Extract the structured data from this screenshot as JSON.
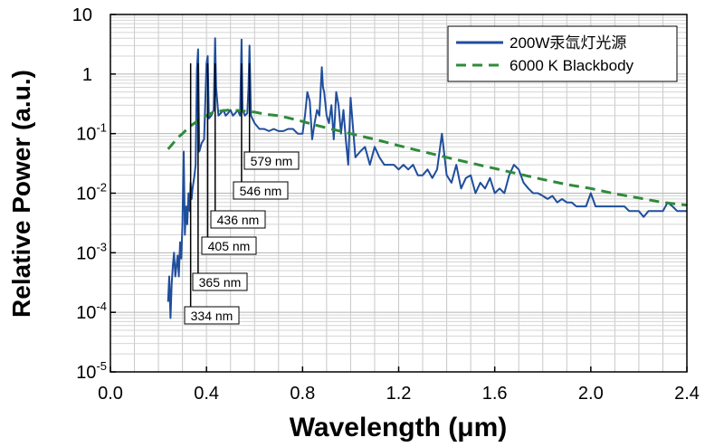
{
  "chart_data": {
    "type": "line",
    "title": "",
    "xlabel": "Wavelength (μm)",
    "ylabel": "Relative Power (a.u.)",
    "xlim": [
      0.0,
      2.4
    ],
    "ylim_log10": [
      -5,
      1
    ],
    "x_ticks": [
      "0.0",
      "0.4",
      "0.8",
      "1.2",
      "1.6",
      "2.0",
      "2.4"
    ],
    "y_ticks": [
      {
        "value": 10,
        "label": "10",
        "exp": ""
      },
      {
        "value": 1,
        "label": "1",
        "exp": ""
      },
      {
        "value": 0.1,
        "label": "10",
        "exp": "-1"
      },
      {
        "value": 0.01,
        "label": "10",
        "exp": "-2"
      },
      {
        "value": 0.001,
        "label": "10",
        "exp": "-3"
      },
      {
        "value": 0.0001,
        "label": "10",
        "exp": "-4"
      },
      {
        "value": 1e-05,
        "label": "10",
        "exp": "-5"
      }
    ],
    "grid": true,
    "legend_position": "top-right",
    "series": [
      {
        "name": "200W汞氙灯光源",
        "color": "#1f4e9c",
        "style": "solid",
        "x": [
          0.24,
          0.245,
          0.25,
          0.255,
          0.26,
          0.265,
          0.27,
          0.275,
          0.28,
          0.285,
          0.29,
          0.295,
          0.3,
          0.305,
          0.31,
          0.313,
          0.316,
          0.32,
          0.325,
          0.33,
          0.334,
          0.338,
          0.342,
          0.35,
          0.355,
          0.36,
          0.365,
          0.37,
          0.38,
          0.39,
          0.4,
          0.405,
          0.41,
          0.42,
          0.43,
          0.436,
          0.44,
          0.45,
          0.46,
          0.47,
          0.48,
          0.49,
          0.5,
          0.51,
          0.52,
          0.53,
          0.54,
          0.546,
          0.55,
          0.56,
          0.57,
          0.575,
          0.579,
          0.585,
          0.6,
          0.62,
          0.64,
          0.66,
          0.68,
          0.7,
          0.72,
          0.74,
          0.76,
          0.78,
          0.8,
          0.81,
          0.82,
          0.83,
          0.84,
          0.85,
          0.86,
          0.87,
          0.88,
          0.885,
          0.89,
          0.9,
          0.91,
          0.92,
          0.93,
          0.94,
          0.95,
          0.96,
          0.97,
          0.98,
          0.99,
          1.0,
          1.02,
          1.04,
          1.06,
          1.08,
          1.1,
          1.12,
          1.14,
          1.16,
          1.18,
          1.2,
          1.22,
          1.24,
          1.26,
          1.28,
          1.3,
          1.32,
          1.34,
          1.36,
          1.38,
          1.4,
          1.42,
          1.44,
          1.46,
          1.48,
          1.5,
          1.52,
          1.54,
          1.56,
          1.58,
          1.6,
          1.62,
          1.64,
          1.66,
          1.68,
          1.7,
          1.72,
          1.74,
          1.76,
          1.78,
          1.8,
          1.82,
          1.84,
          1.86,
          1.88,
          1.9,
          1.92,
          1.94,
          1.96,
          1.98,
          2.0,
          2.02,
          2.04,
          2.06,
          2.08,
          2.1,
          2.12,
          2.14,
          2.16,
          2.18,
          2.2,
          2.22,
          2.24,
          2.26,
          2.28,
          2.3,
          2.32,
          2.34,
          2.36,
          2.38,
          2.4
        ],
        "y": [
          0.00015,
          0.0004,
          8e-05,
          0.0003,
          0.0006,
          0.001,
          0.0004,
          0.0006,
          0.0009,
          0.0004,
          0.0015,
          0.0008,
          0.003,
          0.05,
          0.002,
          0.004,
          0.006,
          0.003,
          0.01,
          0.005,
          0.015,
          0.008,
          0.012,
          0.02,
          0.03,
          1.2,
          2.6,
          0.05,
          0.07,
          0.08,
          1.5,
          2.0,
          0.18,
          0.2,
          0.25,
          4.0,
          0.6,
          0.2,
          0.22,
          0.25,
          0.2,
          0.22,
          0.25,
          0.2,
          0.22,
          0.25,
          0.2,
          3.8,
          0.25,
          0.2,
          0.22,
          0.6,
          3.0,
          0.2,
          0.15,
          0.12,
          0.12,
          0.11,
          0.12,
          0.11,
          0.11,
          0.12,
          0.12,
          0.1,
          0.1,
          0.2,
          0.5,
          0.35,
          0.08,
          0.15,
          0.25,
          0.2,
          1.3,
          0.6,
          0.5,
          0.2,
          0.15,
          0.3,
          0.08,
          0.5,
          0.3,
          0.1,
          0.25,
          0.08,
          0.03,
          0.4,
          0.04,
          0.05,
          0.06,
          0.03,
          0.06,
          0.04,
          0.03,
          0.03,
          0.03,
          0.025,
          0.03,
          0.025,
          0.03,
          0.02,
          0.02,
          0.025,
          0.018,
          0.025,
          0.1,
          0.02,
          0.015,
          0.03,
          0.012,
          0.018,
          0.02,
          0.01,
          0.015,
          0.012,
          0.018,
          0.01,
          0.012,
          0.01,
          0.02,
          0.03,
          0.025,
          0.015,
          0.012,
          0.01,
          0.01,
          0.009,
          0.008,
          0.009,
          0.007,
          0.008,
          0.007,
          0.007,
          0.006,
          0.006,
          0.006,
          0.01,
          0.006,
          0.006,
          0.006,
          0.006,
          0.006,
          0.006,
          0.006,
          0.005,
          0.005,
          0.005,
          0.004,
          0.005,
          0.005,
          0.005,
          0.005,
          0.007,
          0.006,
          0.005,
          0.005,
          0.005
        ]
      },
      {
        "name": "6000 K Blackbody",
        "color": "#2e8b3a",
        "style": "dashed",
        "x": [
          0.24,
          0.26,
          0.28,
          0.3,
          0.32,
          0.34,
          0.36,
          0.38,
          0.4,
          0.42,
          0.44,
          0.46,
          0.48,
          0.5,
          0.55,
          0.6,
          0.65,
          0.7,
          0.75,
          0.8,
          0.85,
          0.9,
          1.0,
          1.1,
          1.2,
          1.3,
          1.4,
          1.5,
          1.6,
          1.7,
          1.8,
          1.9,
          2.0,
          2.1,
          2.2,
          2.3,
          2.4
        ],
        "y": [
          0.055,
          0.068,
          0.085,
          0.1,
          0.12,
          0.14,
          0.16,
          0.18,
          0.2,
          0.22,
          0.23,
          0.24,
          0.245,
          0.25,
          0.24,
          0.23,
          0.21,
          0.2,
          0.18,
          0.16,
          0.14,
          0.125,
          0.1,
          0.08,
          0.063,
          0.05,
          0.04,
          0.032,
          0.026,
          0.021,
          0.017,
          0.014,
          0.012,
          0.0098,
          0.0083,
          0.007,
          0.0063
        ]
      }
    ],
    "annotations": [
      {
        "text": "334 nm",
        "x": 0.334
      },
      {
        "text": "365 nm",
        "x": 0.365
      },
      {
        "text": "405 nm",
        "x": 0.405
      },
      {
        "text": "436 nm",
        "x": 0.436
      },
      {
        "text": "546 nm",
        "x": 0.546
      },
      {
        "text": "579 nm",
        "x": 0.579
      }
    ]
  }
}
